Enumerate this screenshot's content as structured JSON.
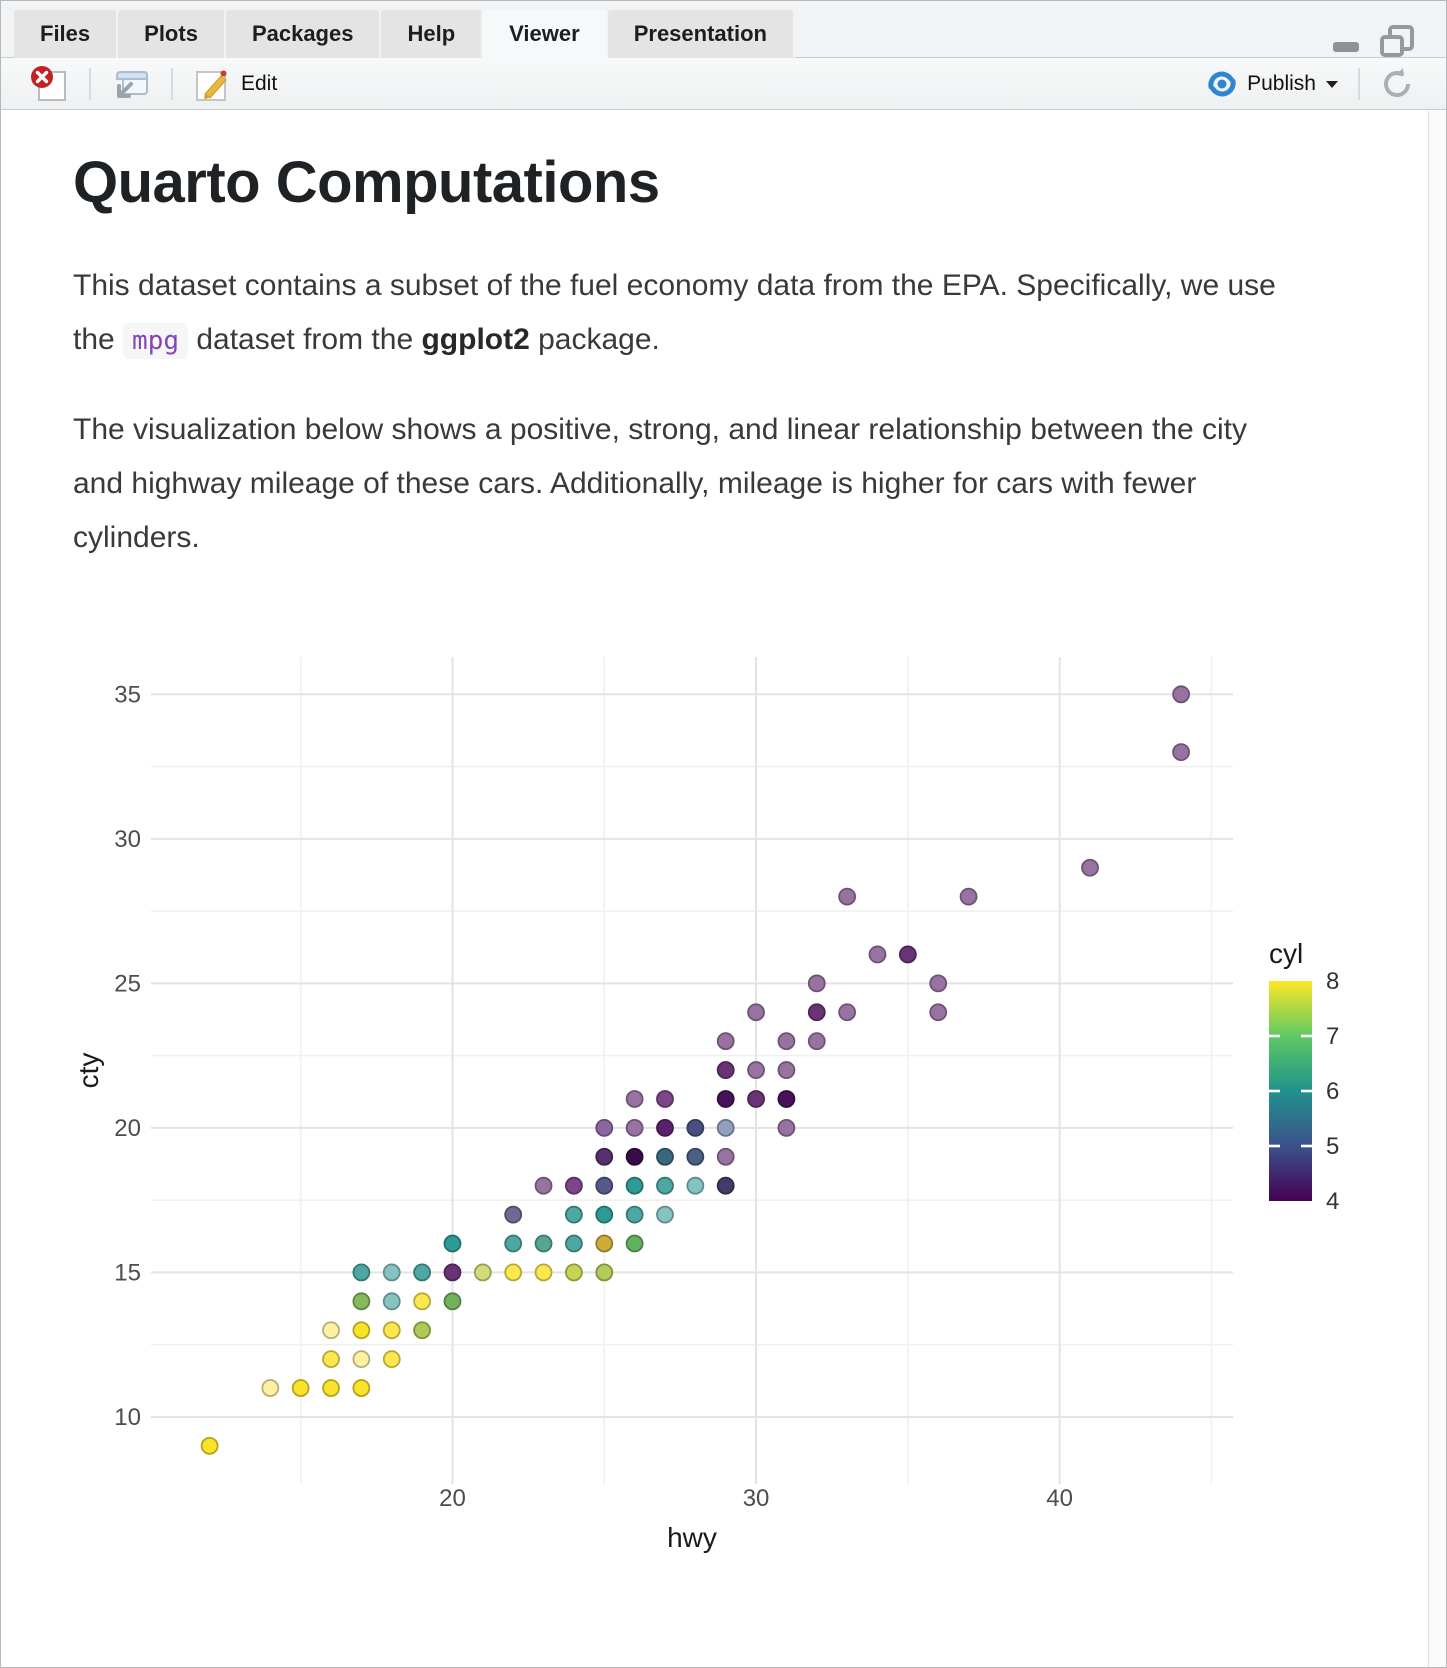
{
  "window": {
    "tabs": [
      {
        "label": "Files",
        "active": false
      },
      {
        "label": "Plots",
        "active": false
      },
      {
        "label": "Packages",
        "active": false
      },
      {
        "label": "Help",
        "active": false
      },
      {
        "label": "Viewer",
        "active": true
      },
      {
        "label": "Presentation",
        "active": false
      }
    ]
  },
  "toolbar": {
    "edit_label": "Edit",
    "publish_label": "Publish",
    "publish_color": "#2e86d1",
    "icons": [
      "clear-viewer-icon",
      "open-in-new-window-icon",
      "edit-pencil-icon",
      "publish-icon",
      "dropdown-caret-icon",
      "refresh-icon"
    ]
  },
  "document": {
    "title": "Quarto Computations",
    "p1_seg1": "This dataset contains a subset of the fuel economy data from the EPA. Specifically, we use the ",
    "p1_code": "mpg",
    "p1_seg2": " dataset from the ",
    "p1_bold": "ggplot2",
    "p1_seg3": " package.",
    "p2": "The visualization below shows a positive, strong, and linear relationship between the city and highway mileage of these cars. Additionally, mileage is higher for cars with fewer cylinders."
  },
  "chart_data": {
    "type": "scatter",
    "xlabel": "hwy",
    "ylabel": "cty",
    "xlim": [
      10.07,
      45.71
    ],
    "ylim": [
      7.68,
      36.29
    ],
    "x_ticks": [
      20,
      30,
      40
    ],
    "x_minor": [
      15,
      25,
      35,
      45
    ],
    "y_ticks": [
      10,
      15,
      20,
      25,
      30,
      35
    ],
    "y_minor": [
      12.5,
      17.5,
      22.5,
      27.5,
      32.5
    ],
    "grid": "on",
    "legend": {
      "title": "cyl",
      "position": "right",
      "tick_labels": [
        8,
        7,
        6,
        5,
        4
      ],
      "inner_ticks": [
        7,
        6,
        5
      ],
      "viridis_stops": [
        "#440154",
        "#3b528b",
        "#21918c",
        "#5ec962",
        "#fde725"
      ]
    },
    "points": [
      {
        "hwy": 12,
        "cty": 9,
        "cyl": 8,
        "color": "#f9e32a"
      },
      {
        "hwy": 14,
        "cty": 11,
        "cyl": 8,
        "color": "#fdf0a3"
      },
      {
        "hwy": 15,
        "cty": 11,
        "cyl": 8,
        "color": "#f9e32a"
      },
      {
        "hwy": 16,
        "cty": 11,
        "cyl": 8,
        "color": "#f9e32a"
      },
      {
        "hwy": 17,
        "cty": 11,
        "cyl": 8,
        "color": "#f9e32a"
      },
      {
        "hwy": 16,
        "cty": 12,
        "cyl": 8,
        "color": "#fbe84e"
      },
      {
        "hwy": 17,
        "cty": 12,
        "cyl": 8,
        "color": "#fdf0a3"
      },
      {
        "hwy": 18,
        "cty": 12,
        "cyl": 8,
        "color": "#fbe84e"
      },
      {
        "hwy": 16,
        "cty": 13,
        "cyl": 8,
        "color": "#fdf0a3"
      },
      {
        "hwy": 17,
        "cty": 13,
        "cyl": 8,
        "color": "#f9e32a"
      },
      {
        "hwy": 18,
        "cty": 13,
        "cyl": 8,
        "color": "#fbe84e"
      },
      {
        "hwy": 19,
        "cty": 13,
        "cyl": 8,
        "color": "#aec956"
      },
      {
        "hwy": 17,
        "cty": 14,
        "cyl": 6,
        "color": "#86b95b"
      },
      {
        "hwy": 18,
        "cty": 14,
        "cyl": 6,
        "color": "#85c3c0"
      },
      {
        "hwy": 19,
        "cty": 14,
        "cyl": 8,
        "color": "#fbe84e"
      },
      {
        "hwy": 20,
        "cty": 14,
        "cyl": 6,
        "color": "#72b25c"
      },
      {
        "hwy": 17,
        "cty": 15,
        "cyl": 6,
        "color": "#4da7a3"
      },
      {
        "hwy": 18,
        "cty": 15,
        "cyl": 6,
        "color": "#85c3c0"
      },
      {
        "hwy": 19,
        "cty": 15,
        "cyl": 6,
        "color": "#4da7a3"
      },
      {
        "hwy": 20,
        "cty": 15,
        "cyl": 4,
        "color": "#693476"
      },
      {
        "hwy": 21,
        "cty": 15,
        "cyl": 8,
        "color": "#d3dc7b"
      },
      {
        "hwy": 22,
        "cty": 15,
        "cyl": 8,
        "color": "#fbe84e"
      },
      {
        "hwy": 23,
        "cty": 15,
        "cyl": 8,
        "color": "#fbe84e"
      },
      {
        "hwy": 24,
        "cty": 15,
        "cyl": 8,
        "color": "#c6d455"
      },
      {
        "hwy": 25,
        "cty": 15,
        "cyl": 8,
        "color": "#b3cc59"
      },
      {
        "hwy": 20,
        "cty": 16,
        "cyl": 6,
        "color": "#2e9a95"
      },
      {
        "hwy": 22,
        "cty": 16,
        "cyl": 6,
        "color": "#4da7a3"
      },
      {
        "hwy": 23,
        "cty": 16,
        "cyl": 6,
        "color": "#52a893"
      },
      {
        "hwy": 24,
        "cty": 16,
        "cyl": 6,
        "color": "#4da7a3"
      },
      {
        "hwy": 25,
        "cty": 16,
        "cyl": 8,
        "color": "#cfab38"
      },
      {
        "hwy": 26,
        "cty": 16,
        "cyl": 8,
        "color": "#62b05f"
      },
      {
        "hwy": 22,
        "cty": 17,
        "cyl": 6,
        "color": "#6d6b92"
      },
      {
        "hwy": 24,
        "cty": 17,
        "cyl": 6,
        "color": "#4da7a3"
      },
      {
        "hwy": 25,
        "cty": 17,
        "cyl": 6,
        "color": "#2e9a95"
      },
      {
        "hwy": 26,
        "cty": 17,
        "cyl": 6,
        "color": "#4da7a3"
      },
      {
        "hwy": 27,
        "cty": 17,
        "cyl": 6,
        "color": "#85c3c0"
      },
      {
        "hwy": 23,
        "cty": 18,
        "cyl": 4,
        "color": "#9873a1"
      },
      {
        "hwy": 24,
        "cty": 18,
        "cyl": 4,
        "color": "#7c4689"
      },
      {
        "hwy": 25,
        "cty": 18,
        "cyl": 6,
        "color": "#565a88"
      },
      {
        "hwy": 26,
        "cty": 18,
        "cyl": 6,
        "color": "#2e9a95"
      },
      {
        "hwy": 27,
        "cty": 18,
        "cyl": 6,
        "color": "#4da7a3"
      },
      {
        "hwy": 28,
        "cty": 18,
        "cyl": 6,
        "color": "#85c3c0"
      },
      {
        "hwy": 29,
        "cty": 18,
        "cyl": 4,
        "color": "#423c68"
      },
      {
        "hwy": 25,
        "cty": 19,
        "cyl": 4,
        "color": "#552f6e"
      },
      {
        "hwy": 26,
        "cty": 19,
        "cyl": 4,
        "color": "#3a0a4d"
      },
      {
        "hwy": 27,
        "cty": 19,
        "cyl": 6,
        "color": "#39687e"
      },
      {
        "hwy": 28,
        "cty": 19,
        "cyl": 5,
        "color": "#4a5f82"
      },
      {
        "hwy": 29,
        "cty": 19,
        "cyl": 4,
        "color": "#9873a1"
      },
      {
        "hwy": 25,
        "cty": 20,
        "cyl": 4,
        "color": "#8a66a0"
      },
      {
        "hwy": 26,
        "cty": 20,
        "cyl": 4,
        "color": "#9873a1"
      },
      {
        "hwy": 27,
        "cty": 20,
        "cyl": 4,
        "color": "#5b1f6e"
      },
      {
        "hwy": 28,
        "cty": 20,
        "cyl": 4,
        "color": "#4a4f82"
      },
      {
        "hwy": 29,
        "cty": 20,
        "cyl": 5,
        "color": "#939fbf"
      },
      {
        "hwy": 31,
        "cty": 20,
        "cyl": 4,
        "color": "#9873a1"
      },
      {
        "hwy": 26,
        "cty": 21,
        "cyl": 4,
        "color": "#9873a1"
      },
      {
        "hwy": 27,
        "cty": 21,
        "cyl": 4,
        "color": "#7c4689"
      },
      {
        "hwy": 29,
        "cty": 21,
        "cyl": 4,
        "color": "#471259"
      },
      {
        "hwy": 30,
        "cty": 21,
        "cyl": 4,
        "color": "#693476"
      },
      {
        "hwy": 31,
        "cty": 21,
        "cyl": 4,
        "color": "#471259"
      },
      {
        "hwy": 29,
        "cty": 22,
        "cyl": 4,
        "color": "#693476"
      },
      {
        "hwy": 30,
        "cty": 22,
        "cyl": 4,
        "color": "#9873a1"
      },
      {
        "hwy": 31,
        "cty": 22,
        "cyl": 4,
        "color": "#9873a1"
      },
      {
        "hwy": 29,
        "cty": 23,
        "cyl": 4,
        "color": "#9873a1"
      },
      {
        "hwy": 31,
        "cty": 23,
        "cyl": 4,
        "color": "#9873a1"
      },
      {
        "hwy": 32,
        "cty": 23,
        "cyl": 4,
        "color": "#9873a1"
      },
      {
        "hwy": 30,
        "cty": 24,
        "cyl": 4,
        "color": "#9873a1"
      },
      {
        "hwy": 32,
        "cty": 24,
        "cyl": 4,
        "color": "#693476"
      },
      {
        "hwy": 33,
        "cty": 24,
        "cyl": 4,
        "color": "#9873a1"
      },
      {
        "hwy": 36,
        "cty": 24,
        "cyl": 4,
        "color": "#9873a1"
      },
      {
        "hwy": 32,
        "cty": 25,
        "cyl": 4,
        "color": "#9873a1"
      },
      {
        "hwy": 36,
        "cty": 25,
        "cyl": 4,
        "color": "#9873a1"
      },
      {
        "hwy": 34,
        "cty": 26,
        "cyl": 4,
        "color": "#9873a1"
      },
      {
        "hwy": 35,
        "cty": 26,
        "cyl": 4,
        "color": "#693476"
      },
      {
        "hwy": 33,
        "cty": 28,
        "cyl": 4,
        "color": "#9873a1"
      },
      {
        "hwy": 37,
        "cty": 28,
        "cyl": 4,
        "color": "#9873a1"
      },
      {
        "hwy": 41,
        "cty": 29,
        "cyl": 4,
        "color": "#9873a1"
      },
      {
        "hwy": 44,
        "cty": 33,
        "cyl": 4,
        "color": "#9873a1"
      },
      {
        "hwy": 44,
        "cty": 35,
        "cyl": 4,
        "color": "#9873a1"
      }
    ]
  }
}
